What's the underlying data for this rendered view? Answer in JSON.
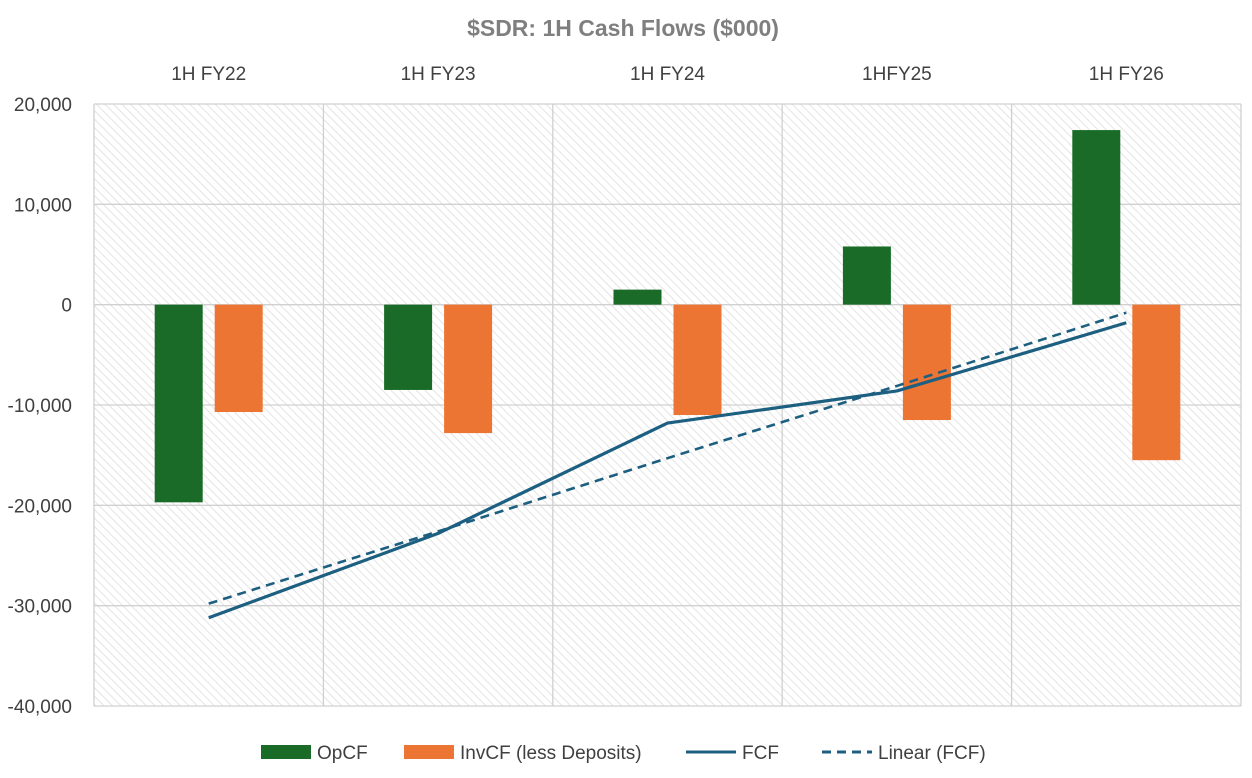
{
  "chart_data": {
    "type": "bar",
    "title": "$SDR: 1H Cash Flows ($000)",
    "categories": [
      "1H FY22",
      "1H FY23",
      "1H FY24",
      "1HFY25",
      "1H FY26"
    ],
    "ylim": [
      -40000,
      20000
    ],
    "yticks": [
      20000,
      10000,
      0,
      -10000,
      -20000,
      -30000,
      -40000
    ],
    "ytick_labels": [
      "20,000",
      "10,000",
      "0",
      "-10,000",
      "-20,000",
      "-30,000",
      "-40,000"
    ],
    "grid": true,
    "legend_position": "bottom",
    "series": [
      {
        "name": "OpCF",
        "kind": "bar",
        "color": "#1a6b27",
        "values": [
          -19700,
          -8500,
          1500,
          5800,
          17400
        ]
      },
      {
        "name": "InvCF (less Deposits)",
        "kind": "bar",
        "color": "#ec7533",
        "values": [
          -10700,
          -12800,
          -11000,
          -11500,
          -15500
        ]
      },
      {
        "name": "FCF",
        "kind": "line",
        "color": "#1d5f80",
        "values": [
          -31200,
          -22800,
          -11800,
          -8600,
          -1800
        ]
      },
      {
        "name": "Linear (FCF)",
        "kind": "dashed-line",
        "color": "#1d5f80",
        "values": [
          -29800,
          -22600,
          -15300,
          -8100,
          -800
        ]
      }
    ]
  }
}
